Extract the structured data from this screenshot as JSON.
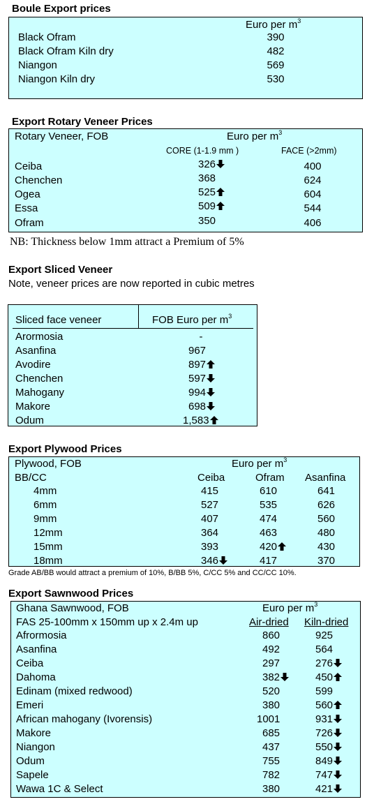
{
  "boule": {
    "title": "Boule Export prices",
    "unit": "Euro per m",
    "unit_sup": "3",
    "rows": [
      {
        "name": "Black Ofram",
        "price": "390"
      },
      {
        "name": "Black Ofram  Kiln dry",
        "price": "482"
      },
      {
        "name": "Niangon",
        "price": "569"
      },
      {
        "name": "Niangon Kiln dry",
        "price": "530"
      }
    ]
  },
  "rotary": {
    "title": "Export Rotary Veneer Prices",
    "label": "Rotary Veneer,  FOB",
    "unit": "Euro  per m",
    "unit_sup": "3",
    "col_core": "CORE (1-1.9 mm )",
    "col_face": "FACE (>2mm)",
    "rows": [
      {
        "name": "Ceiba",
        "core": "326",
        "core_trend": "down",
        "face": "400"
      },
      {
        "name": "Chenchen",
        "core": "368",
        "core_trend": "",
        "face": "624"
      },
      {
        "name": "Ogea",
        "core": "525",
        "core_trend": "up",
        "face": "604"
      },
      {
        "name": "Essa",
        "core": "509",
        "core_trend": "up",
        "face": "544"
      },
      {
        "name": "Ofram",
        "core": "350",
        "core_trend": "",
        "face": "406"
      }
    ],
    "note": "NB: Thickness below 1mm attract a Premium of 5%"
  },
  "sliced": {
    "title": "Export Sliced Veneer",
    "subtitle": "Note, veneer prices are now reported in cubic metres",
    "col_name": "Sliced face veneer",
    "col_price": "FOB Euro per m",
    "col_sup": "3",
    "rows": [
      {
        "name": "Arormosia",
        "price": "-",
        "trend": ""
      },
      {
        "name": "Asanfina",
        "price": "967",
        "trend": ""
      },
      {
        "name": "Avodire",
        "price": "897",
        "trend": "up"
      },
      {
        "name": "Chenchen",
        "price": "597",
        "trend": "down"
      },
      {
        "name": "Mahogany",
        "price": "994",
        "trend": "down"
      },
      {
        "name": "Makore",
        "price": "698",
        "trend": "down"
      },
      {
        "name": "Odum",
        "price": "1,583",
        "trend": "up"
      }
    ]
  },
  "plywood": {
    "title": "Export Plywood Prices",
    "label": "Plywood, FOB",
    "unit": "Euro per m",
    "unit_sup": "3",
    "grade": "BB/CC",
    "cols": [
      "Ceiba",
      "Ofram",
      "Asanfina"
    ],
    "rows": [
      {
        "size": "4mm",
        "ceiba": "415",
        "ceiba_t": "",
        "ofram": "610",
        "ofram_t": "",
        "asanfina": "641"
      },
      {
        "size": "6mm",
        "ceiba": "527",
        "ceiba_t": "",
        "ofram": "535",
        "ofram_t": "",
        "asanfina": "626"
      },
      {
        "size": "9mm",
        "ceiba": "407",
        "ceiba_t": "",
        "ofram": "474",
        "ofram_t": "",
        "asanfina": "560"
      },
      {
        "size": "12mm",
        "ceiba": "364",
        "ceiba_t": "",
        "ofram": "463",
        "ofram_t": "",
        "asanfina": "480"
      },
      {
        "size": "15mm",
        "ceiba": "393",
        "ceiba_t": "",
        "ofram": "420",
        "ofram_t": "up",
        "asanfina": "430"
      },
      {
        "size": "18mm",
        "ceiba": "346",
        "ceiba_t": "down",
        "ofram": "417",
        "ofram_t": "",
        "asanfina": "370"
      }
    ],
    "note": "Grade AB/BB would attract a premium of 10%, B/BB 5%, C/CC 5% and CC/CC 10%."
  },
  "sawn": {
    "title": "Export Sawnwood Prices",
    "label": "Ghana Sawnwood, FOB",
    "unit": "Euro per m",
    "unit_sup": "3",
    "spec": "FAS 25-100mm x 150mm up x 2.4m up",
    "col_air": "Air-dried",
    "col_kiln": "Kiln-dried",
    "rows": [
      {
        "name": "Afrormosia",
        "air": "860",
        "air_t": "",
        "kiln": "925",
        "kiln_t": ""
      },
      {
        "name": "Asanfina",
        "air": "492",
        "air_t": "",
        "kiln": "564",
        "kiln_t": ""
      },
      {
        "name": "Ceiba",
        "air": "297",
        "air_t": "",
        "kiln": "276",
        "kiln_t": "down"
      },
      {
        "name": "Dahoma",
        "air": "382",
        "air_t": "down",
        "kiln": "450",
        "kiln_t": "up"
      },
      {
        "name": "Edinam (mixed redwood)",
        "air": "520",
        "air_t": "",
        "kiln": "599",
        "kiln_t": ""
      },
      {
        "name": "Emeri",
        "air": "380",
        "air_t": "",
        "kiln": "560",
        "kiln_t": "up"
      },
      {
        "name": "African mahogany (Ivorensis)",
        "air": "1001",
        "air_t": "",
        "kiln": "931",
        "kiln_t": "down"
      },
      {
        "name": "Makore",
        "air": "685",
        "air_t": "",
        "kiln": "726",
        "kiln_t": "down"
      },
      {
        "name": "Niangon",
        "air": "437",
        "air_t": "",
        "kiln": "550",
        "kiln_t": "down"
      },
      {
        "name": "Odum",
        "air": "755",
        "air_t": "",
        "kiln": "849",
        "kiln_t": "down"
      },
      {
        "name": "Sapele",
        "air": "782",
        "air_t": "",
        "kiln": "747",
        "kiln_t": "down"
      },
      {
        "name": "Wawa 1C & Select",
        "air": "380",
        "air_t": "",
        "kiln": "421",
        "kiln_t": "down"
      }
    ]
  },
  "colors": {
    "table_bg": "#ccffff",
    "border": "#000000"
  }
}
